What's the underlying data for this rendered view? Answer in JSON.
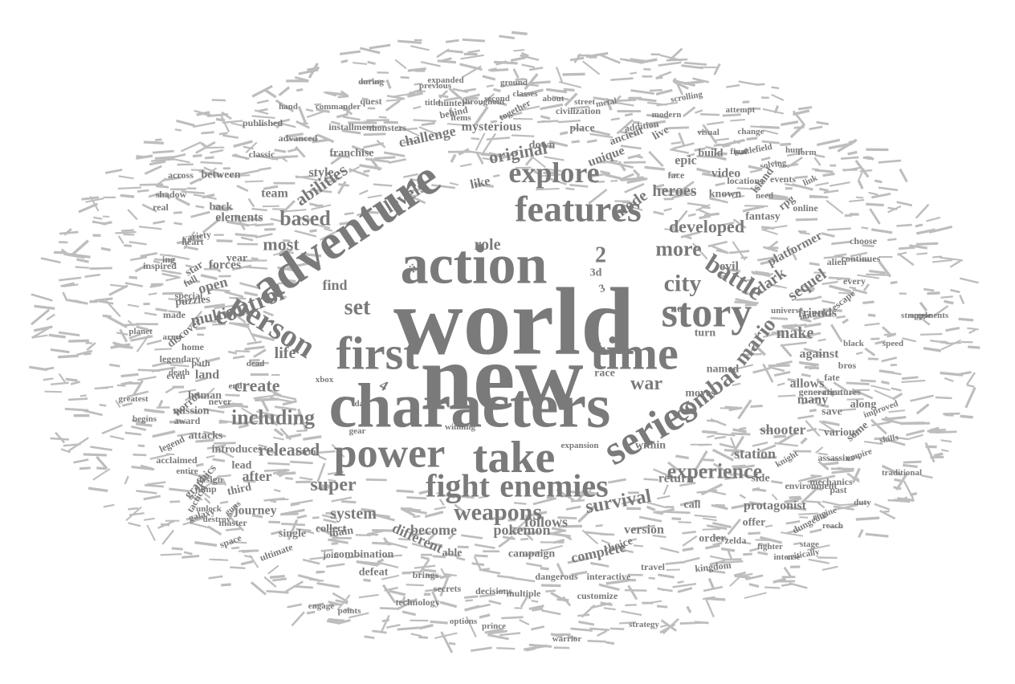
{
  "word_cloud": {
    "color": "#7a7a7a",
    "speck_color": "#bdbdbd",
    "background": "#ffffff",
    "words": [
      {
        "text": "world"
      },
      {
        "text": "new"
      },
      {
        "text": "characters"
      },
      {
        "text": "action"
      },
      {
        "text": "first"
      },
      {
        "text": "adventure"
      },
      {
        "text": "time"
      },
      {
        "text": "take"
      },
      {
        "text": "features"
      },
      {
        "text": "power"
      },
      {
        "text": "series"
      },
      {
        "text": "story"
      },
      {
        "text": "enemies"
      },
      {
        "text": "person"
      },
      {
        "text": "fight"
      },
      {
        "text": "explore"
      },
      {
        "text": "weapons"
      },
      {
        "text": "control"
      },
      {
        "text": "combat"
      },
      {
        "text": "battle"
      },
      {
        "text": "including"
      },
      {
        "text": "experience"
      },
      {
        "text": "set"
      },
      {
        "text": "2"
      },
      {
        "text": "city"
      },
      {
        "text": "mario"
      },
      {
        "text": "super"
      },
      {
        "text": "survival"
      },
      {
        "text": "released"
      },
      {
        "text": "developed"
      },
      {
        "text": "levels"
      },
      {
        "text": "more"
      },
      {
        "text": "based"
      },
      {
        "text": "original"
      },
      {
        "text": "abilities"
      },
      {
        "text": "war"
      },
      {
        "text": "most"
      },
      {
        "text": "system"
      },
      {
        "text": "create"
      },
      {
        "text": "heroes"
      },
      {
        "text": "mysterious"
      },
      {
        "text": "mode"
      },
      {
        "text": "life"
      },
      {
        "text": "multi"
      },
      {
        "text": "role"
      },
      {
        "text": "make"
      },
      {
        "text": "dark"
      },
      {
        "text": "sequel"
      },
      {
        "text": "platformer"
      },
      {
        "text": "station"
      },
      {
        "text": "shooter"
      },
      {
        "text": "find"
      },
      {
        "text": "open"
      },
      {
        "text": "different"
      },
      {
        "text": "become"
      },
      {
        "text": "pokemon"
      },
      {
        "text": "complete"
      },
      {
        "text": "follows"
      },
      {
        "text": "after"
      },
      {
        "text": "challenge"
      },
      {
        "text": "like"
      },
      {
        "text": "elements"
      },
      {
        "text": "team"
      },
      {
        "text": "style"
      },
      {
        "text": "unique"
      },
      {
        "text": "epic"
      },
      {
        "text": "video"
      },
      {
        "text": "evil"
      },
      {
        "text": "land"
      },
      {
        "text": "forces"
      },
      {
        "text": "allows"
      },
      {
        "text": "against"
      },
      {
        "text": "many"
      },
      {
        "text": "journey"
      },
      {
        "text": "version"
      },
      {
        "text": "protagonist"
      },
      {
        "text": "return"
      },
      {
        "text": "friends"
      },
      {
        "text": "third"
      },
      {
        "text": "graphics"
      },
      {
        "text": "discover"
      },
      {
        "text": "puzzles"
      },
      {
        "text": "star"
      },
      {
        "text": "year"
      },
      {
        "text": "franchise"
      },
      {
        "text": "ancient"
      },
      {
        "text": "down"
      },
      {
        "text": "3"
      },
      {
        "text": "3d"
      },
      {
        "text": "4"
      },
      {
        "text": "ii"
      },
      {
        "text": "not"
      },
      {
        "text": "turn"
      },
      {
        "text": "moves"
      },
      {
        "text": "race"
      },
      {
        "text": "named"
      },
      {
        "text": "save"
      },
      {
        "text": "various"
      },
      {
        "text": "some"
      },
      {
        "text": "along"
      },
      {
        "text": "fantasy"
      },
      {
        "text": "rpg"
      },
      {
        "text": "island"
      },
      {
        "text": "known"
      },
      {
        "text": "place"
      },
      {
        "text": "live"
      },
      {
        "text": "build"
      },
      {
        "text": "within"
      },
      {
        "text": "call"
      },
      {
        "text": "side"
      },
      {
        "text": "offer"
      },
      {
        "text": "single"
      },
      {
        "text": "collect"
      },
      {
        "text": "choice"
      },
      {
        "text": "order"
      },
      {
        "text": "main"
      },
      {
        "text": "able"
      },
      {
        "text": "campaign"
      },
      {
        "text": "defeat"
      },
      {
        "text": "combination"
      },
      {
        "text": "introduces"
      },
      {
        "text": "mission"
      },
      {
        "text": "human"
      },
      {
        "text": "horror"
      },
      {
        "text": "attacks"
      },
      {
        "text": "lead"
      },
      {
        "text": "back"
      },
      {
        "text": "between"
      },
      {
        "text": "across"
      },
      {
        "text": "together"
      },
      {
        "text": "monsters"
      },
      {
        "text": "installment"
      },
      {
        "text": "addition"
      },
      {
        "text": "civilization"
      },
      {
        "text": "behind"
      },
      {
        "text": "hunter"
      },
      {
        "text": "quest"
      },
      {
        "text": "published"
      },
      {
        "text": "classic"
      },
      {
        "text": "face"
      },
      {
        "text": "events"
      },
      {
        "text": "locations"
      },
      {
        "text": "online"
      },
      {
        "text": "continues"
      },
      {
        "text": "choose"
      },
      {
        "text": "alien"
      },
      {
        "text": "escape"
      },
      {
        "text": "every"
      },
      {
        "text": "bros"
      },
      {
        "text": "fate"
      },
      {
        "text": "generation"
      },
      {
        "text": "creatures"
      },
      {
        "text": "past"
      },
      {
        "text": "assassins"
      },
      {
        "text": "mechanics"
      },
      {
        "text": "environment"
      },
      {
        "text": "dungeons"
      },
      {
        "text": "zelda"
      },
      {
        "text": "kingdom"
      },
      {
        "text": "travel"
      },
      {
        "text": "interactive"
      },
      {
        "text": "customize"
      },
      {
        "text": "dangerous"
      },
      {
        "text": "multiple"
      },
      {
        "text": "decisions"
      },
      {
        "text": "secrets"
      },
      {
        "text": "brings"
      },
      {
        "text": "technology"
      },
      {
        "text": "join"
      },
      {
        "text": "ultimate"
      },
      {
        "text": "galaxy"
      },
      {
        "text": "master"
      },
      {
        "text": "space"
      },
      {
        "text": "jump"
      },
      {
        "text": "design"
      },
      {
        "text": "acclaimed"
      },
      {
        "text": "tactical"
      },
      {
        "text": "legend"
      },
      {
        "text": "award"
      },
      {
        "text": "never"
      },
      {
        "text": "even"
      },
      {
        "text": "made"
      },
      {
        "text": "special"
      },
      {
        "text": "full"
      },
      {
        "text": "ing"
      },
      {
        "text": "heart"
      },
      {
        "text": "variety"
      },
      {
        "text": "path"
      },
      {
        "text": "legendary"
      },
      {
        "text": "home"
      },
      {
        "text": "real"
      },
      {
        "text": "shadow"
      },
      {
        "text": "inspired"
      },
      {
        "text": "advanced"
      },
      {
        "text": "hand"
      },
      {
        "text": "commander"
      },
      {
        "text": "during"
      },
      {
        "text": "previous"
      },
      {
        "text": "second"
      },
      {
        "text": "about"
      },
      {
        "text": "metal"
      },
      {
        "text": "visual"
      },
      {
        "text": "final"
      },
      {
        "text": "change"
      },
      {
        "text": "solving"
      },
      {
        "text": "hunt"
      },
      {
        "text": "link"
      },
      {
        "text": "items"
      },
      {
        "text": "title"
      },
      {
        "text": "xbox"
      },
      {
        "text": "dead"
      },
      {
        "text": "end"
      },
      {
        "text": "earth"
      },
      {
        "text": "gear"
      },
      {
        "text": "day"
      },
      {
        "text": "winning"
      },
      {
        "text": "expansion"
      },
      {
        "text": "knight"
      },
      {
        "text": "skills"
      },
      {
        "text": "empire"
      },
      {
        "text": "improved"
      },
      {
        "text": "universe"
      },
      {
        "text": "black"
      },
      {
        "text": "limited"
      },
      {
        "text": "opponents"
      },
      {
        "text": "speed"
      },
      {
        "text": "struggle"
      },
      {
        "text": "traditional"
      },
      {
        "text": "strategy"
      },
      {
        "text": "warrior"
      },
      {
        "text": "prince"
      },
      {
        "text": "options"
      },
      {
        "text": "points"
      },
      {
        "text": "engage"
      },
      {
        "text": "begins"
      },
      {
        "text": "greatest"
      },
      {
        "text": "planet"
      },
      {
        "text": "army"
      },
      {
        "text": "death"
      },
      {
        "text": "intense"
      },
      {
        "text": "fighter"
      },
      {
        "text": "stage"
      },
      {
        "text": "critically"
      },
      {
        "text": "reach"
      },
      {
        "text": "duty"
      },
      {
        "text": "engine"
      },
      {
        "text": "guns"
      },
      {
        "text": "destroy"
      },
      {
        "text": "unlock"
      },
      {
        "text": "entire"
      },
      {
        "text": "classes"
      },
      {
        "text": "street"
      },
      {
        "text": "modern"
      },
      {
        "text": "scrolling"
      },
      {
        "text": "battlefield"
      },
      {
        "text": "form"
      },
      {
        "text": "need"
      },
      {
        "text": "attempt"
      },
      {
        "text": "throughout"
      },
      {
        "text": "ground"
      },
      {
        "text": "expanded"
      }
    ]
  }
}
